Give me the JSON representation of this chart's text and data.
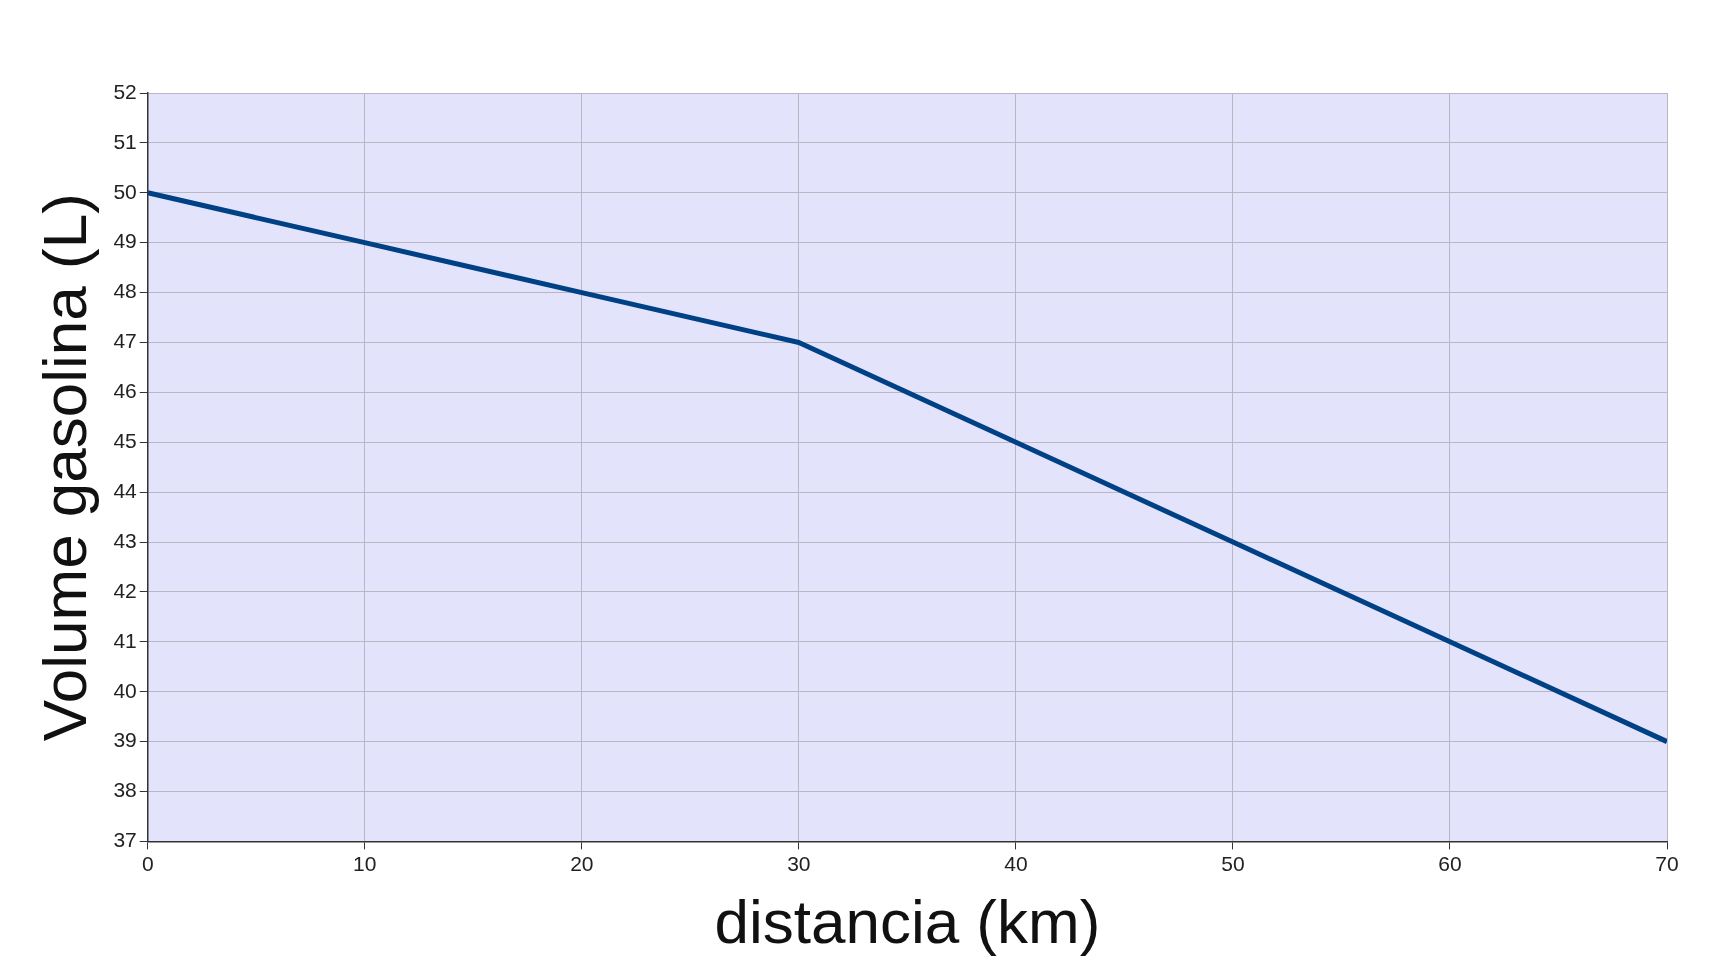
{
  "chart_data": {
    "type": "line",
    "xlabel": "distancia (km)",
    "ylabel": "Volume gasolina (L)",
    "x": [
      0,
      10,
      20,
      30,
      40,
      50,
      60,
      70
    ],
    "series": [
      {
        "color": "#004185",
        "values": [
          50,
          49,
          48,
          47,
          45,
          43,
          41,
          39
        ]
      }
    ],
    "xlim": [
      0,
      70
    ],
    "xticks": [
      0,
      10,
      20,
      30,
      40,
      50,
      60,
      70
    ],
    "ylim": [
      37,
      52
    ],
    "yticks": [
      37,
      38,
      39,
      40,
      41,
      42,
      43,
      44,
      45,
      46,
      47,
      48,
      49,
      50,
      51,
      52
    ],
    "grid": true,
    "legend": false,
    "marker": "none",
    "line_style": "solid"
  }
}
